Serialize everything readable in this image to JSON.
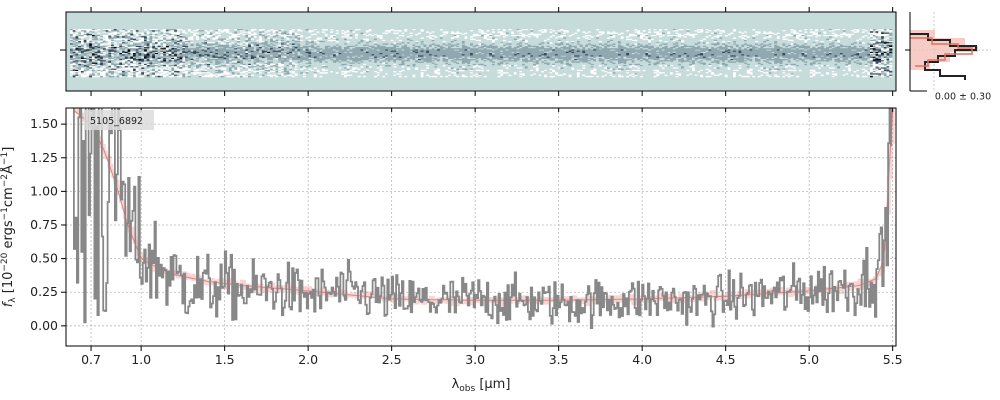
{
  "chart_data": {
    "type": "line",
    "object_label": "5105_6892",
    "xlabel_main": "λ",
    "xlabel_sub": "obs",
    "xlabel_unit": " [μm]",
    "ylabel_main": "f",
    "ylabel_sub": "λ",
    "ylabel_rest": " [10",
    "ylabel_exp1": "−20",
    "ylabel_mid": " ergs",
    "ylabel_exp2": "−1",
    "ylabel_cm": "cm",
    "ylabel_exp3": "−2",
    "ylabel_A": "Å",
    "ylabel_exp4": "−1",
    "ylabel_end": "]",
    "xlim": [
      0.55,
      5.52
    ],
    "ylim": [
      -0.15,
      1.62
    ],
    "xticks": [
      0.7,
      1.0,
      1.5,
      2.0,
      2.5,
      3.0,
      3.5,
      4.0,
      4.5,
      5.0,
      5.5
    ],
    "xtick_labels": [
      "0.7",
      "1.0",
      "1.5",
      "2.0",
      "2.5",
      "3.0",
      "3.5",
      "4.0",
      "4.5",
      "5.0",
      "5.5"
    ],
    "yticks": [
      0.0,
      0.25,
      0.5,
      0.75,
      1.0,
      1.25,
      1.5
    ],
    "ytick_labels": [
      "0.00",
      "0.25",
      "0.50",
      "0.75",
      "1.00",
      "1.25",
      "1.50"
    ],
    "grid": true,
    "series": [
      {
        "role": "flux",
        "color": "#888888",
        "x": [
          0.6,
          0.66,
          0.72,
          0.78,
          0.85,
          0.92,
          1.0,
          1.1,
          1.2,
          1.3,
          1.4,
          1.5,
          1.6,
          1.8,
          2.0,
          2.2,
          2.5,
          2.8,
          3.0,
          3.3,
          3.6,
          4.0,
          4.3,
          4.6,
          4.9,
          5.1,
          5.3,
          5.45,
          5.48
        ],
        "y": [
          0.8,
          1.2,
          1.6,
          1.0,
          1.3,
          0.7,
          0.55,
          0.45,
          0.35,
          0.3,
          0.28,
          0.3,
          0.25,
          0.28,
          0.22,
          0.26,
          0.2,
          0.18,
          0.2,
          0.18,
          0.17,
          0.2,
          0.18,
          0.22,
          0.25,
          0.28,
          0.3,
          0.5,
          1.6
        ],
        "y_noise": [
          1.0,
          1.2,
          1.4,
          0.9,
          0.8,
          0.45,
          0.3,
          0.25,
          0.22,
          0.2,
          0.18,
          0.17,
          0.16,
          0.15,
          0.14,
          0.14,
          0.13,
          0.13,
          0.13,
          0.12,
          0.12,
          0.12,
          0.12,
          0.13,
          0.14,
          0.15,
          0.16,
          0.25,
          0.4
        ]
      },
      {
        "role": "model",
        "color": "#f08080",
        "x": [
          0.6,
          0.7,
          0.78,
          0.85,
          0.92,
          1.0,
          1.1,
          1.2,
          1.4,
          1.6,
          2.0,
          2.5,
          3.0,
          3.5,
          4.0,
          4.5,
          5.0,
          5.3,
          5.4,
          5.45,
          5.48,
          5.5
        ],
        "y": [
          1.6,
          1.5,
          1.3,
          1.05,
          0.75,
          0.5,
          0.43,
          0.38,
          0.33,
          0.3,
          0.26,
          0.2,
          0.19,
          0.19,
          0.2,
          0.22,
          0.26,
          0.3,
          0.35,
          0.5,
          1.2,
          1.6
        ]
      }
    ],
    "spectrum2d": {
      "rows": 40,
      "cols": 300,
      "cmap": [
        "#000000",
        "#3a4a5a",
        "#90a8b0",
        "#c8dcdc",
        "#ffffff"
      ]
    },
    "side_histogram": {
      "label": "0.00 ± 0.30",
      "colors": [
        "#222222",
        "#e07060",
        "#f4c0b8"
      ]
    }
  }
}
